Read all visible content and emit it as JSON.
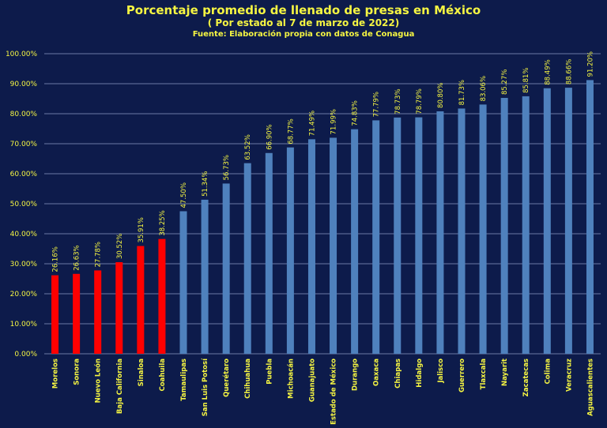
{
  "chart_data": {
    "type": "bar",
    "title": "Porcentaje promedio de llenado de presas en México",
    "subtitle": "( Por estado al 7 de marzo de 2022)",
    "source": "Fuente: Elaboración propia con datos de Conagua",
    "xlabel": "",
    "ylabel": "",
    "ylim": [
      0,
      100
    ],
    "yticks": [
      "0.00%",
      "10.00%",
      "20.00%",
      "30.00%",
      "40.00%",
      "50.00%",
      "60.00%",
      "70.00%",
      "80.00%",
      "90.00%",
      "100.00%"
    ],
    "grid": true,
    "categories": [
      "Morelos",
      "Sonora",
      "Nuevo León",
      "Baja California",
      "Sinaloa",
      "Coahuila",
      "Tamaulipas",
      "San Luis Potosí",
      "Querétaro",
      "Chihuahua",
      "Puebla",
      "Michoacán",
      "Guanajuato",
      "Estado de México",
      "Durango",
      "Oaxaca",
      "Chiapas",
      "Hidalgo",
      "Jalisco",
      "Guerrero",
      "Tlaxcala",
      "Nayarit",
      "Zacatecas",
      "Colima",
      "Veracruz",
      "Aguascalientes"
    ],
    "values": [
      26.16,
      26.63,
      27.78,
      30.52,
      35.91,
      38.25,
      47.5,
      51.34,
      56.73,
      63.52,
      66.9,
      68.77,
      71.49,
      71.99,
      74.83,
      77.79,
      78.73,
      78.79,
      80.8,
      81.73,
      83.06,
      85.27,
      85.81,
      88.49,
      88.66,
      91.2
    ],
    "data_labels": [
      "26.16%",
      "26.63%",
      "27.78%",
      "30.52%",
      "35.91%",
      "38.25%",
      "47.50%",
      "51.34%",
      "56.73%",
      "63.52%",
      "66.90%",
      "68.77%",
      "71.49%",
      "71.99%",
      "74.83%",
      "77.79%",
      "78.73%",
      "78.79%",
      "80.80%",
      "81.73%",
      "83.06%",
      "85.27%",
      "85.81%",
      "88.49%",
      "88.66%",
      "91.20%"
    ],
    "highlight_count": 6,
    "colors": {
      "highlight": "#ff0000",
      "bar": "#4f81bd",
      "grid": "#8a9bc4",
      "text": "#f5f542",
      "background": "#0d1b4b"
    }
  }
}
